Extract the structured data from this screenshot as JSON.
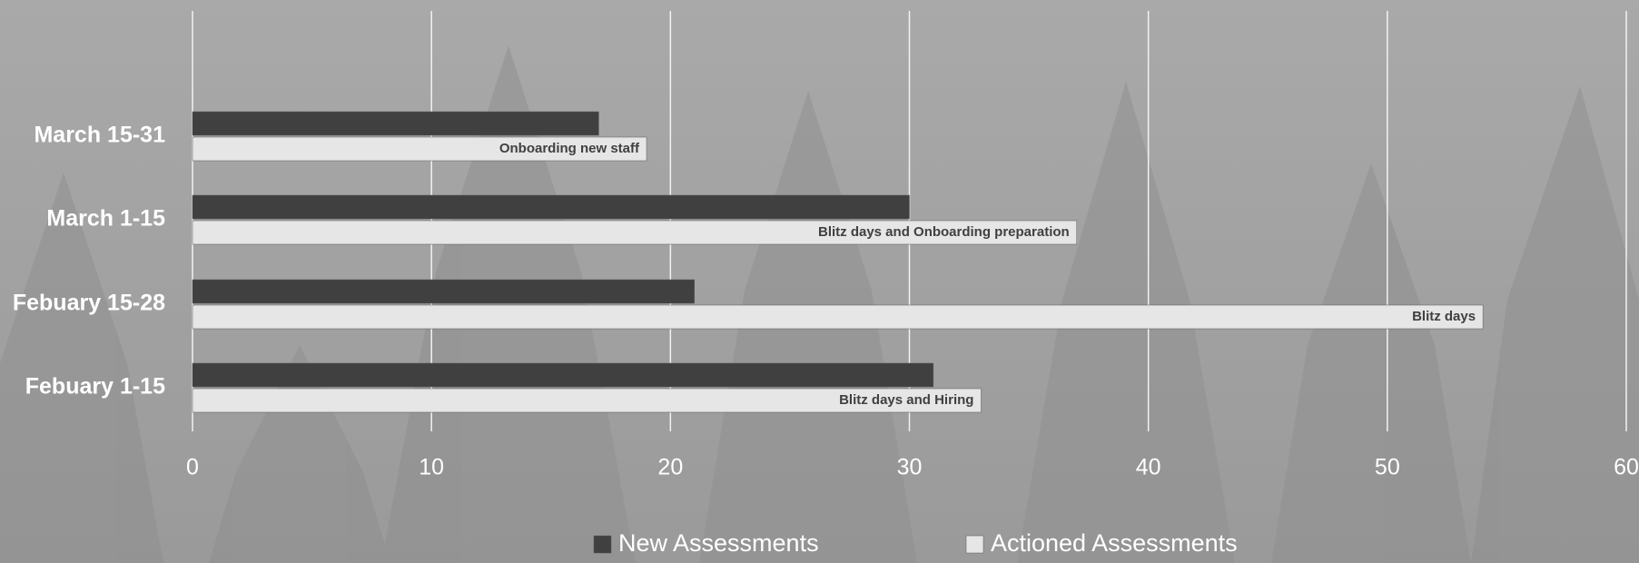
{
  "chart_data": {
    "type": "hbar",
    "categories": [
      "March 15-31",
      "March 1-15",
      "Febuary 15-28",
      "Febuary 1-15"
    ],
    "series": [
      {
        "name": "New Assessments",
        "color": "#404040",
        "values": [
          17,
          30,
          21,
          31
        ]
      },
      {
        "name": "Actioned Assessments",
        "color": "#e6e6e6",
        "values": [
          19,
          37,
          54,
          33
        ],
        "annotations": [
          "Onboarding new staff",
          "Blitz days and Onboarding preparation",
          "Blitz days",
          "Blitz days and Hiring"
        ]
      }
    ],
    "xlim": [
      0,
      60
    ],
    "xticks": [
      0,
      10,
      20,
      30,
      40,
      50,
      60
    ],
    "grid": true,
    "legend": "bottom"
  }
}
